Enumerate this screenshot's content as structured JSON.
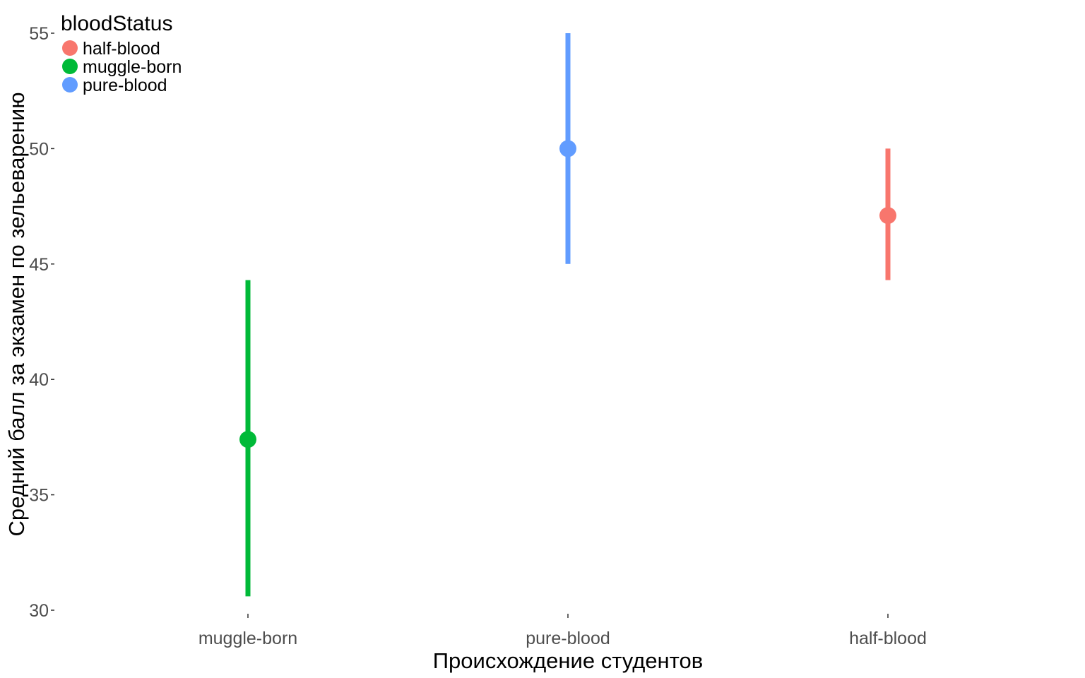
{
  "chart_data": {
    "type": "pointrange",
    "title": "",
    "xlabel": "Происхождение студентов",
    "ylabel": "Средний балл за экзамен по зельеварению",
    "categories": [
      "muggle-born",
      "pure-blood",
      "half-blood"
    ],
    "series": [
      {
        "category": "muggle-born",
        "mean": 37.4,
        "lower": 30.6,
        "upper": 44.3,
        "color": "#00BA38"
      },
      {
        "category": "pure-blood",
        "mean": 50.0,
        "lower": 45.0,
        "upper": 55.0,
        "color": "#619CFF"
      },
      {
        "category": "half-blood",
        "mean": 47.1,
        "lower": 44.3,
        "upper": 50.0,
        "color": "#F8766D"
      }
    ],
    "ylim": [
      30,
      55
    ],
    "yticks": [
      30,
      35,
      40,
      45,
      50,
      55
    ],
    "grid": false,
    "legend": {
      "title": "bloodStatus",
      "placement": "top-left",
      "items": [
        {
          "label": "half-blood",
          "color": "#F8766D"
        },
        {
          "label": "muggle-born",
          "color": "#00BA38"
        },
        {
          "label": "pure-blood",
          "color": "#619CFF"
        }
      ]
    }
  }
}
